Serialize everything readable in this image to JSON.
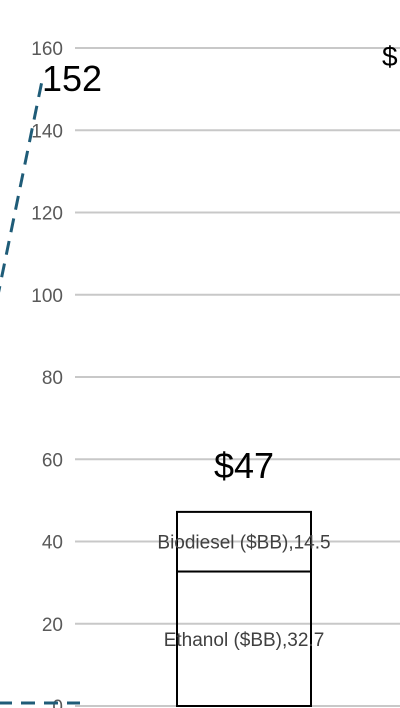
{
  "chart_data": {
    "type": "bar",
    "stacked": true,
    "yticks": [
      0,
      20,
      40,
      60,
      80,
      100,
      120,
      140,
      160
    ],
    "ylim": [
      0,
      160
    ],
    "grid": true,
    "categories": [
      ""
    ],
    "series": [
      {
        "name": "Ethanol ($BB)",
        "values": [
          32.7
        ]
      },
      {
        "name": "Biodiesel ($BB)",
        "values": [
          14.5
        ]
      }
    ],
    "segment_labels": [
      "Ethanol ($BB),32.7",
      "Biodiesel ($BB),14.5"
    ],
    "bar_total_label": "$47",
    "trend_line": {
      "style": "dashed",
      "color": "#1f5c78",
      "end_value": 152,
      "end_label": "152"
    },
    "right_label": "$"
  }
}
